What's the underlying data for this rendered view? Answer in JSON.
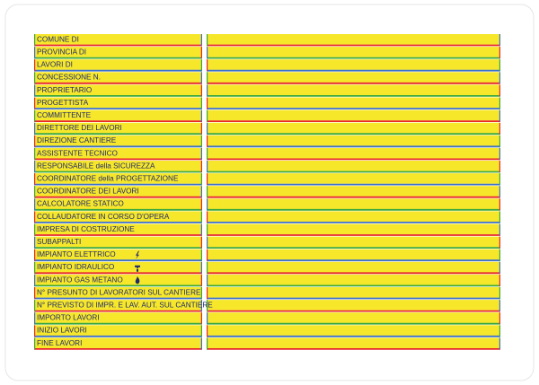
{
  "sign": {
    "rows": [
      "COMUNE DI",
      "PROVINCIA DI",
      "LAVORI DI",
      "CONCESSIONE N.",
      "PROPRIETARIO",
      "PROGETTISTA",
      "COMMITTENTE",
      "DIRETTORE DEI LAVORI",
      "DIREZIONE CANTIERE",
      "ASSISTENTE TECNICO",
      "RESPONSABILE della SICUREZZA",
      "COORDINATORE della PROGETTAZIONE",
      "COORDINATORE DEI LAVORI",
      "CALCOLATORE STATICO",
      "COLLAUDATORE IN CORSO D'OPERA",
      "IMPRESA DI COSTRUZIONE",
      "SUBAPPALTI",
      "IMPIANTO ELETTRICO",
      "IMPIANTO IDRAULICO",
      "IMPIANTO GAS METANO",
      "N° PRESUNTO DI LAVORATORI SUL CANTIERE",
      "N° PREVISTO DI IMPR. E LAV. AUT. SUL CANTIERE",
      "IMPORTO LAVORI",
      "INIZIO LAVORI",
      "FINE LAVORI"
    ]
  }
}
